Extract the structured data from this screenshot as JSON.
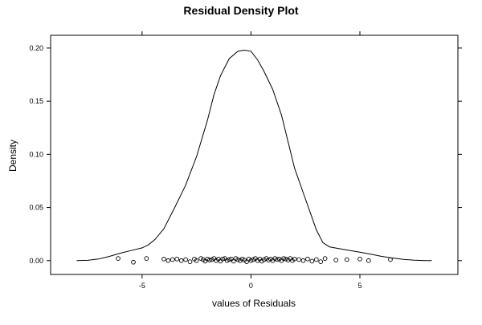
{
  "chart_data": {
    "type": "line",
    "title": "Residual Density Plot",
    "xlabel": "values of Residuals",
    "ylabel": "Density",
    "xlim": [
      -9.2,
      9.5
    ],
    "ylim": [
      -0.013,
      0.212
    ],
    "x_ticks": [
      -5,
      0,
      5
    ],
    "x_tick_labels": [
      "-5",
      "0",
      "5"
    ],
    "y_ticks": [
      0.0,
      0.05,
      0.1,
      0.15,
      0.2
    ],
    "y_tick_labels": [
      "0.00",
      "0.05",
      "0.10",
      "0.15",
      "0.20"
    ],
    "grid": false,
    "legend": "none",
    "series": [
      {
        "type": "line",
        "x": [
          -8.0,
          -7.5,
          -7.0,
          -6.5,
          -6.0,
          -5.5,
          -5.0,
          -4.7,
          -4.4,
          -4.0,
          -3.5,
          -3.0,
          -2.5,
          -2.0,
          -1.7,
          -1.4,
          -1.0,
          -0.6,
          -0.3,
          0.0,
          0.3,
          0.6,
          1.0,
          1.4,
          1.7,
          2.0,
          2.5,
          3.0,
          3.3,
          3.6,
          4.0,
          4.4,
          5.0,
          5.5,
          6.0,
          6.5,
          7.0,
          7.5,
          8.0,
          8.3
        ],
        "y": [
          0.0,
          0.0003,
          0.0015,
          0.004,
          0.007,
          0.0095,
          0.012,
          0.015,
          0.02,
          0.03,
          0.05,
          0.071,
          0.098,
          0.132,
          0.156,
          0.174,
          0.19,
          0.197,
          0.198,
          0.197,
          0.189,
          0.178,
          0.161,
          0.137,
          0.112,
          0.087,
          0.058,
          0.029,
          0.017,
          0.013,
          0.0115,
          0.01,
          0.008,
          0.006,
          0.004,
          0.0025,
          0.0012,
          0.0004,
          0.0,
          0.0
        ]
      },
      {
        "type": "scatter",
        "marker": "open-circle",
        "x": [
          -6.1,
          -5.4,
          -4.8,
          -4.0,
          -3.8,
          -3.6,
          -3.4,
          -3.2,
          -3.0,
          -2.8,
          -2.6,
          -2.5,
          -2.3,
          -2.2,
          -2.1,
          -2.0,
          -1.9,
          -1.8,
          -1.7,
          -1.6,
          -1.5,
          -1.4,
          -1.3,
          -1.2,
          -1.1,
          -1.0,
          -0.9,
          -0.8,
          -0.7,
          -0.6,
          -0.5,
          -0.4,
          -0.3,
          -0.2,
          -0.1,
          0.0,
          0.1,
          0.2,
          0.3,
          0.4,
          0.5,
          0.6,
          0.7,
          0.8,
          0.9,
          1.0,
          1.1,
          1.2,
          1.3,
          1.4,
          1.5,
          1.6,
          1.7,
          1.8,
          1.9,
          2.0,
          2.2,
          2.4,
          2.6,
          2.8,
          3.0,
          3.2,
          3.4,
          3.9,
          4.4,
          5.0,
          5.4,
          6.4
        ],
        "y": [
          0.002,
          -0.0015,
          0.002,
          0.0015,
          0.0,
          0.001,
          0.0015,
          0.0,
          0.001,
          -0.001,
          0.0015,
          0.0,
          0.002,
          0.001,
          -0.0005,
          0.0015,
          0.0005,
          0.001,
          0.002,
          0.0,
          0.0015,
          -0.0005,
          0.0015,
          0.002,
          0.0,
          0.001,
          0.0015,
          -0.0005,
          0.002,
          0.001,
          0.0,
          0.0015,
          0.0005,
          -0.001,
          0.0015,
          0.0,
          0.001,
          0.002,
          0.0,
          0.0015,
          -0.0005,
          0.001,
          0.002,
          0.0005,
          0.0015,
          0.0,
          0.002,
          0.001,
          0.0015,
          0.0,
          0.002,
          0.0015,
          0.0005,
          0.002,
          0.0,
          0.0015,
          0.001,
          0.0,
          0.0015,
          -0.0005,
          0.001,
          -0.001,
          0.002,
          0.0005,
          0.001,
          0.0015,
          0.0,
          0.001
        ]
      }
    ]
  }
}
